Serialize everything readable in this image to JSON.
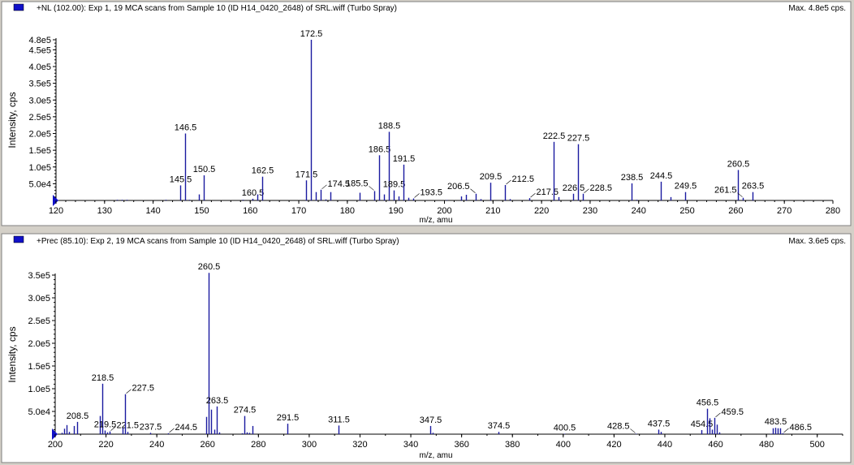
{
  "colors": {
    "peak": "#1a1aa0",
    "legend": "#1010c8",
    "background": "#d4d0c8"
  },
  "chart_data": [
    {
      "type": "bar",
      "title": "+NL (102.00): Exp 1, 19 MCA scans from Sample 10 (ID H14_0420_2648) of SRL.wiff (Turbo Spray)",
      "max_label": "Max. 4.8e5 cps.",
      "xlabel": "m/z, amu",
      "ylabel": "Intensity, cps",
      "xlim": [
        120,
        280
      ],
      "ylim": [
        0,
        480000
      ],
      "x_ticks": [
        120,
        130,
        140,
        150,
        160,
        170,
        180,
        190,
        200,
        210,
        220,
        230,
        240,
        250,
        260,
        270,
        280
      ],
      "y_ticks": [
        {
          "v": 50000,
          "label": "5.0e4"
        },
        {
          "v": 100000,
          "label": "1.0e5"
        },
        {
          "v": 150000,
          "label": "1.5e5"
        },
        {
          "v": 200000,
          "label": "2.0e5"
        },
        {
          "v": 250000,
          "label": "2.5e5"
        },
        {
          "v": 300000,
          "label": "3.0e5"
        },
        {
          "v": 350000,
          "label": "3.5e5"
        },
        {
          "v": 400000,
          "label": "4.0e5"
        },
        {
          "v": 450000,
          "label": "4.5e5"
        },
        {
          "v": 480000,
          "label": "4.8e5"
        }
      ],
      "peaks": [
        {
          "mz": 132.5,
          "i": 2000
        },
        {
          "mz": 133.5,
          "i": 2000
        },
        {
          "mz": 134.5,
          "i": 2000
        },
        {
          "mz": 142.5,
          "i": 2000
        },
        {
          "mz": 145.5,
          "i": 45000,
          "label": "145.5"
        },
        {
          "mz": 146.5,
          "i": 200000,
          "label": "146.5"
        },
        {
          "mz": 147.5,
          "i": 2000
        },
        {
          "mz": 149.5,
          "i": 18000
        },
        {
          "mz": 150.5,
          "i": 75000,
          "label": "150.5"
        },
        {
          "mz": 158.5,
          "i": 2000
        },
        {
          "mz": 160.5,
          "i": 5000,
          "label": "160.5"
        },
        {
          "mz": 161.5,
          "i": 18000
        },
        {
          "mz": 162.5,
          "i": 71000,
          "label": "162.5"
        },
        {
          "mz": 171.5,
          "i": 60000,
          "label": "171.5"
        },
        {
          "mz": 172.5,
          "i": 480000,
          "label": "172.5"
        },
        {
          "mz": 173.5,
          "i": 25000
        },
        {
          "mz": 174.5,
          "i": 32000,
          "label": "174.5"
        },
        {
          "mz": 175.5,
          "i": 3000
        },
        {
          "mz": 176.5,
          "i": 25000
        },
        {
          "mz": 182.5,
          "i": 23000
        },
        {
          "mz": 185.5,
          "i": 28000,
          "label": "185.5"
        },
        {
          "mz": 186.5,
          "i": 135000,
          "label": "186.5"
        },
        {
          "mz": 187.5,
          "i": 18000
        },
        {
          "mz": 188.5,
          "i": 205000,
          "label": "188.5"
        },
        {
          "mz": 189.5,
          "i": 30000,
          "label": "189.5"
        },
        {
          "mz": 190.5,
          "i": 12000
        },
        {
          "mz": 191.5,
          "i": 107000,
          "label": "191.5"
        },
        {
          "mz": 192.5,
          "i": 8000
        },
        {
          "mz": 193.5,
          "i": 6000,
          "label": "193.5"
        },
        {
          "mz": 200.5,
          "i": 1500
        },
        {
          "mz": 203.5,
          "i": 12000
        },
        {
          "mz": 204.5,
          "i": 17000
        },
        {
          "mz": 206.5,
          "i": 20000,
          "label": "206.5"
        },
        {
          "mz": 207.5,
          "i": 4000
        },
        {
          "mz": 209.5,
          "i": 53000,
          "label": "209.5"
        },
        {
          "mz": 212.5,
          "i": 46000,
          "label": "212.5"
        },
        {
          "mz": 213.5,
          "i": 4000
        },
        {
          "mz": 217.5,
          "i": 7000,
          "label": "217.5"
        },
        {
          "mz": 222.5,
          "i": 175000,
          "label": "222.5"
        },
        {
          "mz": 223.5,
          "i": 10000
        },
        {
          "mz": 226.5,
          "i": 20000,
          "label": "226.5"
        },
        {
          "mz": 227.5,
          "i": 168000,
          "label": "227.5"
        },
        {
          "mz": 228.5,
          "i": 20000,
          "label": "228.5"
        },
        {
          "mz": 238.5,
          "i": 51000,
          "label": "238.5"
        },
        {
          "mz": 239.5,
          "i": 2000
        },
        {
          "mz": 244.5,
          "i": 56000,
          "label": "244.5"
        },
        {
          "mz": 246.5,
          "i": 10000
        },
        {
          "mz": 249.5,
          "i": 25000,
          "label": "249.5"
        },
        {
          "mz": 260.5,
          "i": 91000,
          "label": "260.5"
        },
        {
          "mz": 261.5,
          "i": 8000,
          "label": "261.5"
        },
        {
          "mz": 263.5,
          "i": 25000,
          "label": "263.5"
        }
      ]
    },
    {
      "type": "bar",
      "title": "+Prec (85.10): Exp 2, 19 MCA scans from Sample 10 (ID H14_0420_2648) of SRL.wiff (Turbo Spray)",
      "max_label": "Max. 3.6e5 cps.",
      "xlabel": "m/z, amu",
      "ylabel": "Intensity, cps",
      "xlim": [
        200,
        510
      ],
      "ylim": [
        0,
        350000
      ],
      "x_ticks": [
        200,
        220,
        240,
        260,
        280,
        300,
        320,
        340,
        360,
        380,
        400,
        420,
        440,
        460,
        480,
        500
      ],
      "y_ticks": [
        {
          "v": 50000,
          "label": "5.0e4"
        },
        {
          "v": 100000,
          "label": "1.0e5"
        },
        {
          "v": 150000,
          "label": "1.5e5"
        },
        {
          "v": 200000,
          "label": "2.0e5"
        },
        {
          "v": 250000,
          "label": "2.5e5"
        },
        {
          "v": 300000,
          "label": "3.0e5"
        },
        {
          "v": 350000,
          "label": "3.5e5"
        }
      ],
      "peaks": [
        {
          "mz": 202.5,
          "i": 3000
        },
        {
          "mz": 203.5,
          "i": 12000
        },
        {
          "mz": 204.5,
          "i": 20000
        },
        {
          "mz": 205.5,
          "i": 5000
        },
        {
          "mz": 207.5,
          "i": 18000
        },
        {
          "mz": 208.5,
          "i": 27000,
          "label": "208.5"
        },
        {
          "mz": 217.5,
          "i": 40000
        },
        {
          "mz": 218.5,
          "i": 111000,
          "label": "218.5"
        },
        {
          "mz": 219.5,
          "i": 8000,
          "label": "219.5"
        },
        {
          "mz": 220.5,
          "i": 4000
        },
        {
          "mz": 221.5,
          "i": 6000,
          "label": "221.5"
        },
        {
          "mz": 226.5,
          "i": 14000
        },
        {
          "mz": 227.5,
          "i": 88000,
          "label": "227.5"
        },
        {
          "mz": 228.5,
          "i": 5000
        },
        {
          "mz": 237.5,
          "i": 3000,
          "label": "237.5"
        },
        {
          "mz": 244.5,
          "i": 2000,
          "label": "244.5"
        },
        {
          "mz": 259.5,
          "i": 38000
        },
        {
          "mz": 260.5,
          "i": 355000,
          "label": "260.5"
        },
        {
          "mz": 261.5,
          "i": 54000
        },
        {
          "mz": 262.5,
          "i": 10000
        },
        {
          "mz": 263.5,
          "i": 61000,
          "label": "263.5"
        },
        {
          "mz": 264.5,
          "i": 4000
        },
        {
          "mz": 273.5,
          "i": 2000
        },
        {
          "mz": 274.5,
          "i": 40000,
          "label": "274.5"
        },
        {
          "mz": 275.5,
          "i": 4000
        },
        {
          "mz": 276.5,
          "i": 3000
        },
        {
          "mz": 277.5,
          "i": 18000
        },
        {
          "mz": 291.5,
          "i": 23000,
          "label": "291.5"
        },
        {
          "mz": 311.5,
          "i": 19000,
          "label": "311.5"
        },
        {
          "mz": 347.5,
          "i": 18000,
          "label": "347.5"
        },
        {
          "mz": 348.5,
          "i": 3000
        },
        {
          "mz": 374.5,
          "i": 5000,
          "label": "374.5"
        },
        {
          "mz": 400.5,
          "i": 1000,
          "label": "400.5"
        },
        {
          "mz": 428.5,
          "i": 1000,
          "label": "428.5"
        },
        {
          "mz": 437.5,
          "i": 10000,
          "label": "437.5"
        },
        {
          "mz": 438.5,
          "i": 5000
        },
        {
          "mz": 454.5,
          "i": 9000,
          "label": "454.5"
        },
        {
          "mz": 456.5,
          "i": 56000,
          "label": "456.5"
        },
        {
          "mz": 457.5,
          "i": 35000
        },
        {
          "mz": 458.5,
          "i": 10000
        },
        {
          "mz": 459.5,
          "i": 36000,
          "label": "459.5"
        },
        {
          "mz": 460.5,
          "i": 21000
        },
        {
          "mz": 461.5,
          "i": 4000
        },
        {
          "mz": 481.5,
          "i": 1000
        },
        {
          "mz": 482.5,
          "i": 13000
        },
        {
          "mz": 483.5,
          "i": 14000,
          "label": "483.5"
        },
        {
          "mz": 484.5,
          "i": 13000
        },
        {
          "mz": 485.5,
          "i": 13000
        },
        {
          "mz": 486.5,
          "i": 2000,
          "label": "486.5"
        }
      ]
    }
  ]
}
